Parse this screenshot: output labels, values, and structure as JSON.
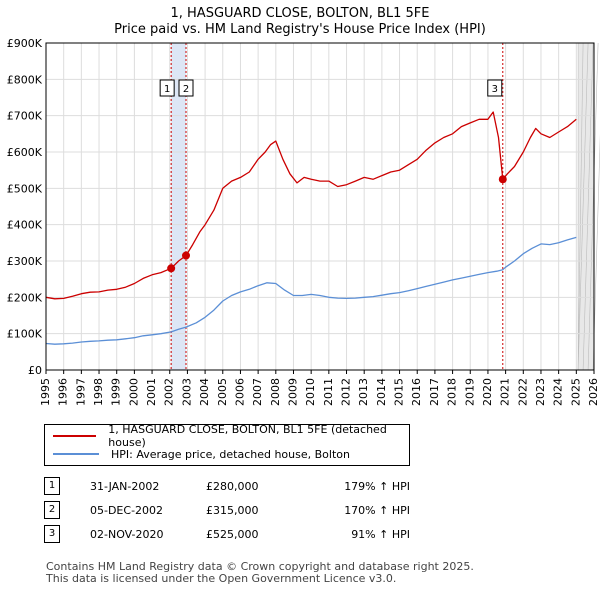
{
  "title_line1": "1, HASGUARD CLOSE, BOLTON, BL1 5FE",
  "title_line2": "Price paid vs. HM Land Registry's House Price Index (HPI)",
  "legend": {
    "property": "1, HASGUARD CLOSE, BOLTON, BL1 5FE (detached house)",
    "hpi": "HPI: Average price, detached house, Bolton"
  },
  "sales": [
    {
      "num": "1",
      "date": "31-JAN-2002",
      "price": "£280,000",
      "hpi": "179% ↑ HPI"
    },
    {
      "num": "2",
      "date": "05-DEC-2002",
      "price": "£315,000",
      "hpi": "170% ↑ HPI"
    },
    {
      "num": "3",
      "date": "02-NOV-2020",
      "price": "£525,000",
      "hpi": "91% ↑ HPI"
    }
  ],
  "footer_line1": "Contains HM Land Registry data © Crown copyright and database right 2025.",
  "footer_line2": "This data is licensed under the Open Government Licence v3.0.",
  "colors": {
    "property": "#cc0000",
    "hpi": "#5b8fd6",
    "sale_band": "#dde6f5",
    "future": "#e8e8e8"
  },
  "chart_data": {
    "type": "line",
    "xlim": [
      1995,
      2026
    ],
    "ylim": [
      0,
      900000
    ],
    "yticks": [
      0,
      100000,
      200000,
      300000,
      400000,
      500000,
      600000,
      700000,
      800000,
      900000
    ],
    "ytick_labels": [
      "£0",
      "£100K",
      "£200K",
      "£300K",
      "£400K",
      "£500K",
      "£600K",
      "£700K",
      "£800K",
      "£900K"
    ],
    "xticks": [
      1995,
      1996,
      1997,
      1998,
      1999,
      2000,
      2001,
      2002,
      2003,
      2004,
      2005,
      2006,
      2007,
      2008,
      2009,
      2010,
      2011,
      2012,
      2013,
      2014,
      2015,
      2016,
      2017,
      2018,
      2019,
      2020,
      2021,
      2022,
      2023,
      2024,
      2025,
      2026
    ],
    "xtick_labels": [
      "1995",
      "1996",
      "1997",
      "1998",
      "1999",
      "2000",
      "2001",
      "2002",
      "2003",
      "2004",
      "2005",
      "2006",
      "2007",
      "2008",
      "2009",
      "2010",
      "2011",
      "2012",
      "2013",
      "2014",
      "2015",
      "2016",
      "2017",
      "2018",
      "2019",
      "2020",
      "2021",
      "2022",
      "2023",
      "2024",
      "2025",
      "2026"
    ],
    "sale_markers": [
      {
        "label": "1",
        "x": 2002.08,
        "y": 280000
      },
      {
        "label": "2",
        "x": 2002.92,
        "y": 315000
      },
      {
        "label": "3",
        "x": 2020.84,
        "y": 525000
      }
    ],
    "data_end": 2025.1,
    "series": [
      {
        "name": "1, HASGUARD CLOSE, BOLTON, BL1 5FE (detached house)",
        "x": [
          1995,
          1995.5,
          1996,
          1996.5,
          1997,
          1997.5,
          1998,
          1998.5,
          1999,
          1999.5,
          2000,
          2000.5,
          2001,
          2001.5,
          2002.08,
          2002.5,
          2002.92,
          2003.3,
          2003.7,
          2004,
          2004.5,
          2005,
          2005.5,
          2006,
          2006.5,
          2007,
          2007.4,
          2007.7,
          2008,
          2008.4,
          2008.8,
          2009.2,
          2009.6,
          2010,
          2010.5,
          2011,
          2011.5,
          2012,
          2012.5,
          2013,
          2013.5,
          2014,
          2014.5,
          2015,
          2015.5,
          2016,
          2016.5,
          2017,
          2017.5,
          2018,
          2018.5,
          2019,
          2019.5,
          2020,
          2020.3,
          2020.6,
          2020.84,
          2021.1,
          2021.5,
          2022,
          2022.4,
          2022.7,
          2023,
          2023.5,
          2024,
          2024.5,
          2025
        ],
        "y": [
          200000,
          196000,
          197000,
          203000,
          210000,
          214000,
          215000,
          220000,
          222000,
          228000,
          238000,
          252000,
          262000,
          268000,
          280000,
          300000,
          315000,
          345000,
          380000,
          400000,
          440000,
          500000,
          520000,
          530000,
          545000,
          580000,
          600000,
          620000,
          630000,
          580000,
          540000,
          515000,
          530000,
          525000,
          520000,
          520000,
          505000,
          510000,
          520000,
          530000,
          525000,
          535000,
          545000,
          550000,
          565000,
          580000,
          605000,
          625000,
          640000,
          650000,
          670000,
          680000,
          690000,
          690000,
          710000,
          640000,
          525000,
          540000,
          560000,
          600000,
          640000,
          665000,
          650000,
          640000,
          655000,
          670000,
          690000
        ]
      },
      {
        "name": "HPI: Average price, detached house, Bolton",
        "x": [
          1995,
          1995.5,
          1996,
          1996.5,
          1997,
          1997.5,
          1998,
          1998.5,
          1999,
          1999.5,
          2000,
          2000.5,
          2001,
          2001.5,
          2002.08,
          2002.5,
          2002.92,
          2003.5,
          2004,
          2004.5,
          2005,
          2005.5,
          2006,
          2006.5,
          2007,
          2007.5,
          2008,
          2008.5,
          2009,
          2009.5,
          2010,
          2010.5,
          2011,
          2011.5,
          2012,
          2012.5,
          2013,
          2013.5,
          2014,
          2014.5,
          2015,
          2015.5,
          2016,
          2016.5,
          2017,
          2017.5,
          2018,
          2018.5,
          2019,
          2019.5,
          2020,
          2020.5,
          2020.84,
          2021,
          2021.5,
          2022,
          2022.5,
          2023,
          2023.5,
          2024,
          2024.5,
          2025
        ],
        "y": [
          73000,
          71000,
          72000,
          74000,
          77000,
          79000,
          80000,
          82000,
          83000,
          86000,
          89000,
          94000,
          97000,
          100000,
          105000,
          112000,
          118000,
          130000,
          145000,
          165000,
          190000,
          205000,
          215000,
          222000,
          232000,
          240000,
          238000,
          220000,
          205000,
          205000,
          208000,
          205000,
          200000,
          198000,
          197000,
          198000,
          200000,
          202000,
          206000,
          210000,
          213000,
          218000,
          224000,
          230000,
          236000,
          242000,
          248000,
          253000,
          258000,
          263000,
          268000,
          272000,
          276000,
          283000,
          300000,
          320000,
          335000,
          347000,
          345000,
          350000,
          358000,
          365000
        ]
      }
    ]
  }
}
